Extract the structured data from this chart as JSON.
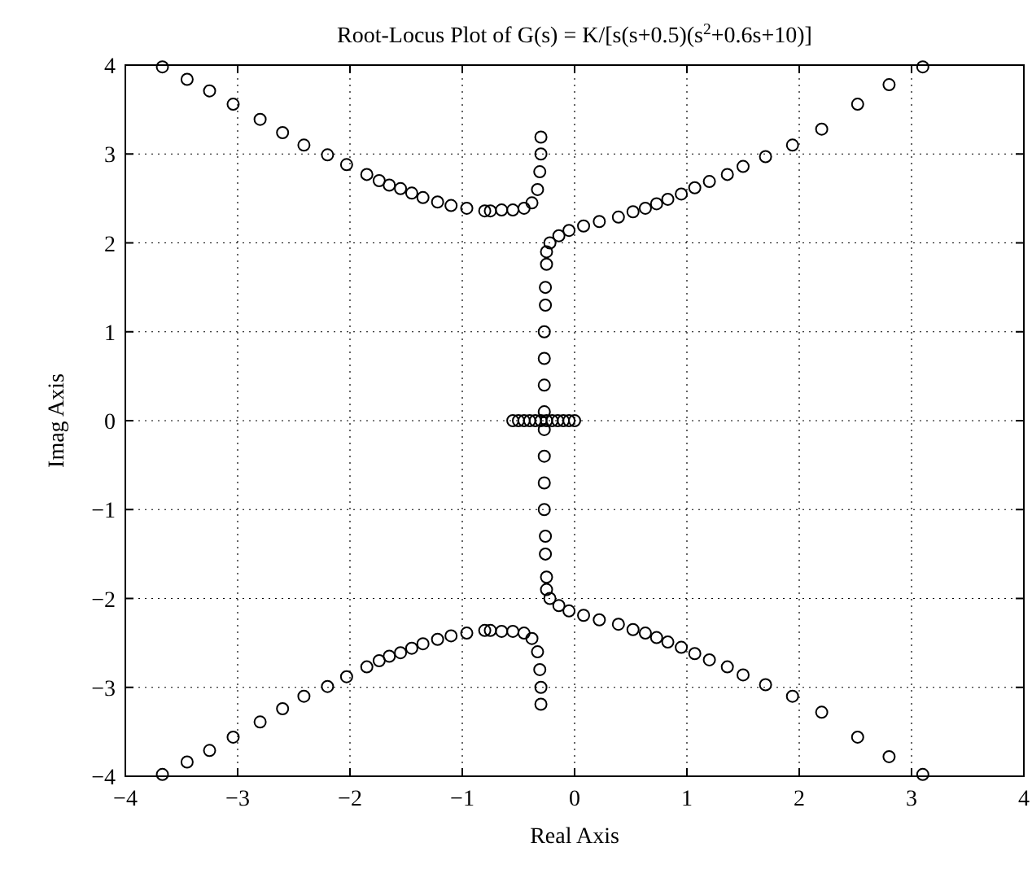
{
  "chart_data": {
    "type": "scatter",
    "title": "Root-Locus Plot of G(s) = K/[s(s+0.5)(s$^{2}$+0.6s+10)]",
    "xlabel": "Real Axis",
    "ylabel": "Imag Axis",
    "xlim": [
      -4,
      4
    ],
    "ylim": [
      -4,
      4
    ],
    "xticks": [
      -4,
      -3,
      -2,
      -1,
      0,
      1,
      2,
      3,
      4
    ],
    "yticks": [
      -4,
      -3,
      -2,
      -1,
      0,
      1,
      2,
      3,
      4
    ],
    "grid": true,
    "marker": "circle",
    "series": [
      {
        "color": "#000000",
        "x": [
          -0.3,
          -0.3,
          -0.31,
          -0.33,
          -0.38,
          -0.45,
          -0.55,
          -0.65,
          -0.75,
          -0.8,
          -0.96,
          -1.1,
          -1.22,
          -1.35,
          -1.45,
          -1.55,
          -1.65,
          -1.74,
          -1.85,
          -2.03,
          -2.2,
          -2.41,
          -2.6,
          -2.8,
          -3.04,
          -3.25,
          -3.45,
          -3.67
        ],
        "values": [
          3.19,
          3.0,
          2.8,
          2.6,
          2.45,
          2.39,
          2.37,
          2.37,
          2.36,
          2.36,
          2.39,
          2.42,
          2.46,
          2.51,
          2.56,
          2.61,
          2.65,
          2.7,
          2.77,
          2.88,
          2.99,
          3.1,
          3.24,
          3.39,
          3.56,
          3.71,
          3.84,
          3.98
        ]
      },
      {
        "color": "#000000",
        "x": [
          -0.3,
          -0.3,
          -0.31,
          -0.33,
          -0.38,
          -0.45,
          -0.55,
          -0.65,
          -0.75,
          -0.8,
          -0.96,
          -1.1,
          -1.22,
          -1.35,
          -1.45,
          -1.55,
          -1.65,
          -1.74,
          -1.85,
          -2.03,
          -2.2,
          -2.41,
          -2.6,
          -2.8,
          -3.04,
          -3.25,
          -3.45,
          -3.67
        ],
        "values": [
          -3.19,
          -3.0,
          -2.8,
          -2.6,
          -2.45,
          -2.39,
          -2.37,
          -2.37,
          -2.36,
          -2.36,
          -2.39,
          -2.42,
          -2.46,
          -2.51,
          -2.56,
          -2.61,
          -2.65,
          -2.7,
          -2.77,
          -2.88,
          -2.99,
          -3.1,
          -3.24,
          -3.39,
          -3.56,
          -3.71,
          -3.84,
          -3.98
        ]
      },
      {
        "color": "#000000",
        "x": [
          -0.27,
          -0.27,
          -0.27,
          -0.27,
          -0.26,
          -0.26,
          -0.25,
          -0.25,
          -0.22,
          -0.14,
          -0.05,
          0.08,
          0.22,
          0.39,
          0.52,
          0.63,
          0.73,
          0.83,
          0.95,
          1.07,
          1.2,
          1.36,
          1.5,
          1.7,
          1.94,
          2.2,
          2.52,
          2.8,
          3.1
        ],
        "values": [
          0.1,
          0.4,
          0.7,
          1.0,
          1.3,
          1.5,
          1.76,
          1.9,
          2.0,
          2.08,
          2.14,
          2.19,
          2.24,
          2.29,
          2.35,
          2.39,
          2.44,
          2.49,
          2.55,
          2.62,
          2.69,
          2.77,
          2.86,
          2.97,
          3.1,
          3.28,
          3.56,
          3.78,
          3.98
        ]
      },
      {
        "color": "#000000",
        "x": [
          -0.27,
          -0.27,
          -0.27,
          -0.27,
          -0.26,
          -0.26,
          -0.25,
          -0.25,
          -0.22,
          -0.14,
          -0.05,
          0.08,
          0.22,
          0.39,
          0.52,
          0.63,
          0.73,
          0.83,
          0.95,
          1.07,
          1.2,
          1.36,
          1.5,
          1.7,
          1.94,
          2.2,
          2.52,
          2.8,
          3.1
        ],
        "values": [
          -0.1,
          -0.4,
          -0.7,
          -1.0,
          -1.3,
          -1.5,
          -1.76,
          -1.9,
          -2.0,
          -2.08,
          -2.14,
          -2.19,
          -2.24,
          -2.29,
          -2.35,
          -2.39,
          -2.44,
          -2.49,
          -2.55,
          -2.62,
          -2.69,
          -2.77,
          -2.86,
          -2.97,
          -3.1,
          -3.28,
          -3.56,
          -3.78,
          -3.98
        ]
      },
      {
        "color": "#000000",
        "x": [
          -0.55,
          -0.5,
          -0.45,
          -0.4,
          -0.35,
          -0.3,
          -0.25,
          -0.2,
          -0.15,
          -0.1,
          -0.05,
          0
        ],
        "values": [
          0,
          0,
          0,
          0,
          0,
          0,
          0,
          0,
          0,
          0,
          0,
          0
        ]
      }
    ]
  }
}
